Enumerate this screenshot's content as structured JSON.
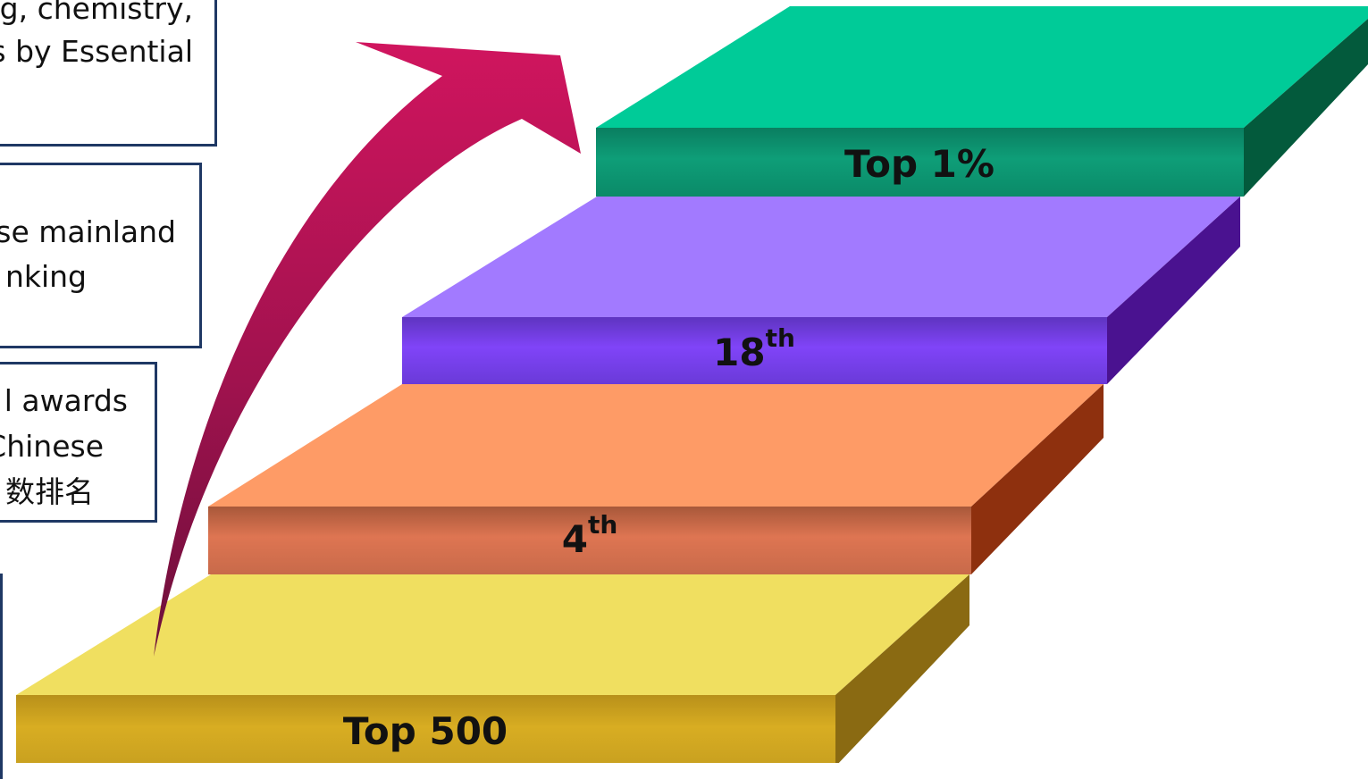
{
  "text_boxes": [
    {
      "lines": [
        "g, chemistry,",
        "s by Essential"
      ]
    },
    {
      "lines": [
        "se mainland",
        "nking"
      ]
    },
    {
      "lines": [
        "l awards",
        "Chinese",
        "数排名"
      ]
    },
    {
      "lines": []
    }
  ],
  "steps": [
    {
      "label": "Top 500",
      "sup": "",
      "color": "#d4a81e"
    },
    {
      "label": "4",
      "sup": "th",
      "color": "#e07a52"
    },
    {
      "label": "18",
      "sup": "th",
      "color": "#7c44f5"
    },
    {
      "label": "Top 1%",
      "sup": "",
      "color": "#0d9e78"
    }
  ],
  "arrow": {
    "color": "#c8145a"
  }
}
